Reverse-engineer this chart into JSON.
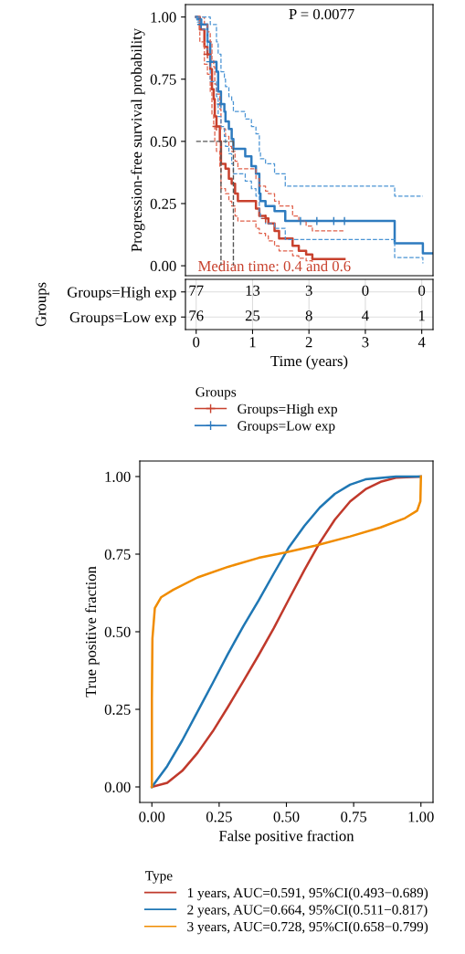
{
  "chart_data": [
    {
      "type": "step",
      "ylabel": "Progression-free survival probability",
      "annotations": [
        "P = 0.0077",
        "Median time: 0.4 and 0.6"
      ],
      "xlabel": "Time (years)",
      "xlim": [
        -0.19,
        4.2
      ],
      "ylim": [
        -0.04,
        1.05
      ],
      "xticks": [
        0,
        1,
        2,
        3,
        4
      ],
      "yticks": [
        {
          "value": 0,
          "label": "0.00"
        },
        {
          "value": 0.25,
          "label": "0.25"
        },
        {
          "value": 0.5,
          "label": "0.50"
        },
        {
          "value": 0.75,
          "label": "0.75"
        },
        {
          "value": 1,
          "label": "1.00"
        }
      ],
      "legend": "bottom",
      "legend_title": "Groups",
      "series": [
        {
          "type": "step",
          "name": "Groups=High exp",
          "color": "#c8412d",
          "x": [
            0,
            0.065,
            0.146,
            0.2,
            0.25,
            0.28,
            0.31,
            0.33,
            0.36,
            0.42,
            0.44,
            0.52,
            0.58,
            0.63,
            0.69,
            0.74,
            1.06,
            1.12,
            1.23,
            1.28,
            1.39,
            1.47,
            1.71,
            1.82,
            1.95,
            2.06,
            2.63
          ],
          "values": [
            1.0,
            0.95,
            0.88,
            0.85,
            0.79,
            0.71,
            0.67,
            0.6,
            0.56,
            0.5,
            0.41,
            0.39,
            0.35,
            0.33,
            0.29,
            0.26,
            0.23,
            0.2,
            0.19,
            0.17,
            0.14,
            0.11,
            0.08,
            0.06,
            0.045,
            0.027,
            0.027
          ]
        },
        {
          "type": "step",
          "name": "Groups=Low exp",
          "color": "#2e7bbf",
          "x": [
            0,
            0.02,
            0.09,
            0.2,
            0.25,
            0.36,
            0.39,
            0.44,
            0.5,
            0.52,
            0.58,
            0.63,
            0.66,
            0.87,
            0.98,
            1.06,
            1.12,
            1.14,
            1.23,
            1.39,
            1.58,
            3.52,
            4.02,
            4.19
          ],
          "values": [
            1.0,
            0.99,
            0.97,
            0.9,
            0.82,
            0.78,
            0.7,
            0.65,
            0.62,
            0.58,
            0.55,
            0.51,
            0.47,
            0.44,
            0.4,
            0.37,
            0.29,
            0.26,
            0.24,
            0.22,
            0.18,
            0.09,
            0.05,
            0.05
          ]
        },
        {
          "type": "step",
          "color": "#e0604a",
          "line_style": "dashed",
          "x": [
            0,
            0.065,
            0.146,
            0.2,
            0.25,
            0.28,
            0.31,
            0.33,
            0.36,
            0.42,
            0.44,
            0.52,
            0.58,
            0.63,
            0.69,
            0.74,
            1.06,
            1.12,
            1.23,
            1.28,
            1.39,
            1.47,
            1.71,
            1.82,
            1.95,
            2.06,
            2.63
          ],
          "values": [
            1.0,
            1.0,
            0.97,
            0.94,
            0.9,
            0.83,
            0.8,
            0.73,
            0.69,
            0.63,
            0.55,
            0.52,
            0.48,
            0.46,
            0.42,
            0.39,
            0.35,
            0.32,
            0.3,
            0.29,
            0.26,
            0.24,
            0.2,
            0.18,
            0.16,
            0.14,
            0.14
          ]
        },
        {
          "type": "step",
          "color": "#e0604a",
          "line_style": "dashed",
          "x": [
            0,
            0.065,
            0.146,
            0.2,
            0.25,
            0.28,
            0.31,
            0.33,
            0.36,
            0.42,
            0.44,
            0.52,
            0.58,
            0.63,
            0.69,
            0.74,
            1.06,
            1.12,
            1.23,
            1.28,
            1.39,
            1.47,
            1.71,
            1.82,
            1.95,
            2.06
          ],
          "values": [
            1.0,
            0.9,
            0.81,
            0.77,
            0.7,
            0.61,
            0.57,
            0.5,
            0.46,
            0.4,
            0.31,
            0.29,
            0.26,
            0.24,
            0.2,
            0.18,
            0.15,
            0.13,
            0.12,
            0.1,
            0.08,
            0.06,
            0.04,
            0.03,
            0.02,
            0.01
          ]
        },
        {
          "type": "step",
          "color": "#4a94d4",
          "line_style": "dashed",
          "x": [
            0,
            0.02,
            0.09,
            0.2,
            0.25,
            0.36,
            0.39,
            0.44,
            0.5,
            0.52,
            0.58,
            0.63,
            0.66,
            0.87,
            0.98,
            1.06,
            1.12,
            1.14,
            1.23,
            1.39,
            1.58,
            3.52,
            4.02
          ],
          "values": [
            1.0,
            1.0,
            1.0,
            1.0,
            0.97,
            0.9,
            0.85,
            0.78,
            0.75,
            0.72,
            0.68,
            0.66,
            0.62,
            0.59,
            0.56,
            0.53,
            0.46,
            0.43,
            0.41,
            0.37,
            0.32,
            0.28,
            0.28
          ]
        },
        {
          "type": "step",
          "color": "#4a94d4",
          "line_style": "dashed",
          "x": [
            0,
            0.02,
            0.09,
            0.2,
            0.25,
            0.36,
            0.39,
            0.44,
            0.5,
            0.52,
            0.58,
            0.63,
            0.66,
            0.87,
            0.98,
            1.06,
            1.12,
            1.14,
            1.23,
            1.39,
            1.58,
            3.52,
            4.02
          ],
          "values": [
            1.0,
            0.98,
            0.95,
            0.85,
            0.74,
            0.68,
            0.6,
            0.56,
            0.52,
            0.48,
            0.45,
            0.41,
            0.37,
            0.34,
            0.31,
            0.28,
            0.21,
            0.19,
            0.17,
            0.15,
            0.105,
            0.033,
            0.01
          ]
        },
        {
          "type": "scatter",
          "color": "#c8412d",
          "marker": "cross",
          "x": [
            0.2,
            0.36,
            1.23
          ],
          "values": [
            0.85,
            0.56,
            0.19
          ]
        },
        {
          "type": "scatter",
          "color": "#2e7bbf",
          "marker": "cross",
          "x": [
            0.09,
            0.25,
            0.44,
            1.85,
            2.14,
            2.44,
            2.63
          ],
          "values": [
            0.97,
            0.82,
            0.65,
            0.18,
            0.18,
            0.18,
            0.18
          ]
        },
        {
          "type": "line",
          "color": "#555555",
          "line_style": "dashed",
          "x": [
            0,
            0.66
          ],
          "values": [
            0.5,
            0.5
          ]
        },
        {
          "type": "line",
          "color": "#555555",
          "line_style": "dashed",
          "x": [
            0.44,
            0.44
          ],
          "values": [
            0.5,
            0
          ]
        },
        {
          "type": "line",
          "color": "#555555",
          "line_style": "dashed",
          "x": [
            0.66,
            0.66
          ],
          "values": [
            0.5,
            0
          ]
        }
      ]
    },
    {
      "type": "heatmap",
      "ylabel": "Groups",
      "grid": true,
      "data_labels": true,
      "tick_labels": "y",
      "categories": [
        null,
        null,
        null,
        null,
        null
      ],
      "y_categories": [
        "Groups=High exp",
        "Groups=Low exp"
      ],
      "cells": [
        [
          77,
          13,
          3,
          0,
          0
        ],
        [
          76,
          25,
          8,
          4,
          1
        ]
      ]
    },
    {
      "type": "line",
      "xlabel": "False positive fraction",
      "ylabel": "True positive fraction",
      "xlim": [
        -0.045,
        1.045
      ],
      "ylim": [
        -0.05,
        1.05
      ],
      "xticks": [
        {
          "value": 0,
          "label": "0.00"
        },
        {
          "value": 0.25,
          "label": "0.25"
        },
        {
          "value": 0.5,
          "label": "0.50"
        },
        {
          "value": 0.75,
          "label": "0.75"
        },
        {
          "value": 1,
          "label": "1.00"
        }
      ],
      "yticks": [
        {
          "value": 0,
          "label": "0.00"
        },
        {
          "value": 0.25,
          "label": "0.25"
        },
        {
          "value": 0.5,
          "label": "0.50"
        },
        {
          "value": 0.75,
          "label": "0.75"
        },
        {
          "value": 1,
          "label": "1.00"
        }
      ],
      "legend": "bottom",
      "legend_title": "Type",
      "series": [
        {
          "name": "1 years, AUC=0.591, 95%CI(0.493−0.689)",
          "color": "#c0392b",
          "x": [
            0,
            0.057,
            0.113,
            0.17,
            0.227,
            0.283,
            0.34,
            0.397,
            0.454,
            0.51,
            0.567,
            0.624,
            0.68,
            0.737,
            0.794,
            0.85,
            0.907,
            1
          ],
          "values": [
            0,
            0.013,
            0.052,
            0.11,
            0.18,
            0.258,
            0.341,
            0.425,
            0.513,
            0.606,
            0.699,
            0.787,
            0.861,
            0.92,
            0.959,
            0.983,
            0.996,
            1
          ]
        },
        {
          "name": "2 years, AUC=0.664, 95%CI(0.511−0.817)",
          "color": "#1f77b4",
          "x": [
            0,
            0.057,
            0.113,
            0.17,
            0.227,
            0.283,
            0.34,
            0.397,
            0.454,
            0.51,
            0.567,
            0.624,
            0.68,
            0.737,
            0.794,
            0.907,
            1
          ],
          "values": [
            0,
            0.067,
            0.15,
            0.243,
            0.336,
            0.429,
            0.518,
            0.601,
            0.689,
            0.773,
            0.841,
            0.9,
            0.944,
            0.974,
            0.991,
            1.0,
            1
          ]
        },
        {
          "name": "3 years, AUC=0.728, 95%CI(0.658−0.799)",
          "color": "#f08c00",
          "x": [
            0,
            0,
            0.002,
            0.011,
            0.034,
            0.079,
            0.17,
            0.283,
            0.397,
            0.495,
            0.607,
            0.737,
            0.85,
            0.941,
            0.986,
            0.998,
            1
          ],
          "values": [
            0,
            0.282,
            0.478,
            0.576,
            0.611,
            0.635,
            0.675,
            0.709,
            0.738,
            0.755,
            0.777,
            0.807,
            0.836,
            0.866,
            0.89,
            0.92,
            1
          ]
        }
      ]
    }
  ]
}
